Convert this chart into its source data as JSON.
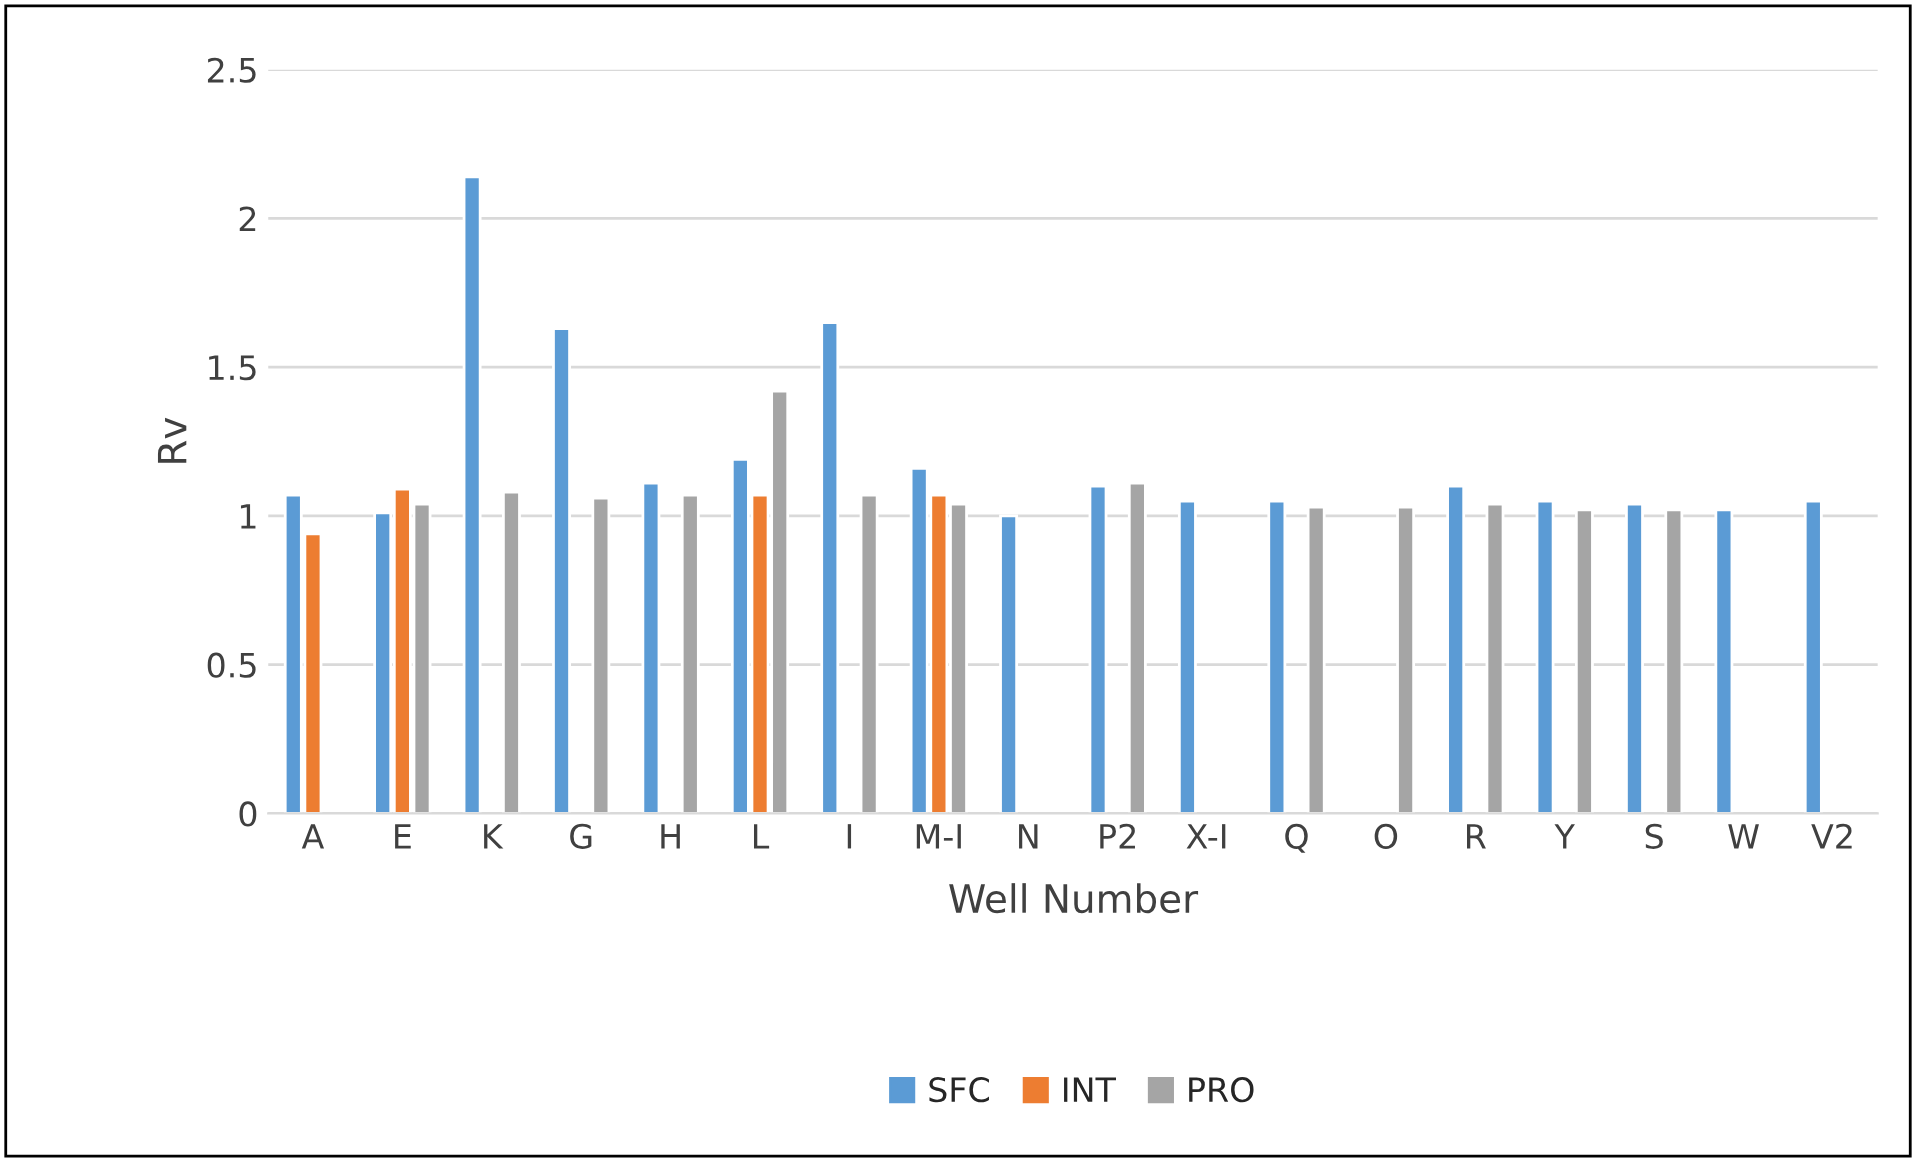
{
  "chart_data": {
    "type": "bar",
    "xlabel": "Well Number",
    "ylabel": "Rv",
    "categories": [
      "A",
      "E",
      "K",
      "G",
      "H",
      "L",
      "I",
      "M-I",
      "N",
      "P2",
      "X-I",
      "Q",
      "O",
      "R",
      "Y",
      "S",
      "W",
      "V2"
    ],
    "series": [
      {
        "name": "SFC",
        "color": "#5b9bd5",
        "values": [
          1.07,
          1.01,
          2.14,
          1.63,
          1.11,
          1.19,
          1.65,
          1.16,
          1.0,
          1.1,
          1.05,
          1.05,
          null,
          1.1,
          1.05,
          1.04,
          1.02,
          1.05
        ]
      },
      {
        "name": "INT",
        "color": "#ed7d31",
        "values": [
          0.94,
          1.09,
          null,
          null,
          null,
          1.07,
          null,
          1.07,
          null,
          null,
          null,
          null,
          null,
          null,
          null,
          null,
          null,
          null
        ]
      },
      {
        "name": "PRO",
        "color": "#a5a5a5",
        "values": [
          null,
          1.04,
          1.08,
          1.06,
          1.07,
          1.42,
          1.07,
          1.04,
          null,
          1.11,
          null,
          1.03,
          1.03,
          1.04,
          1.02,
          1.02,
          null,
          null
        ]
      }
    ],
    "ylim": [
      0,
      2.5
    ],
    "yticks": [
      0,
      0.5,
      1,
      1.5,
      2,
      2.5
    ],
    "grid": "y",
    "legend": "bottom"
  }
}
